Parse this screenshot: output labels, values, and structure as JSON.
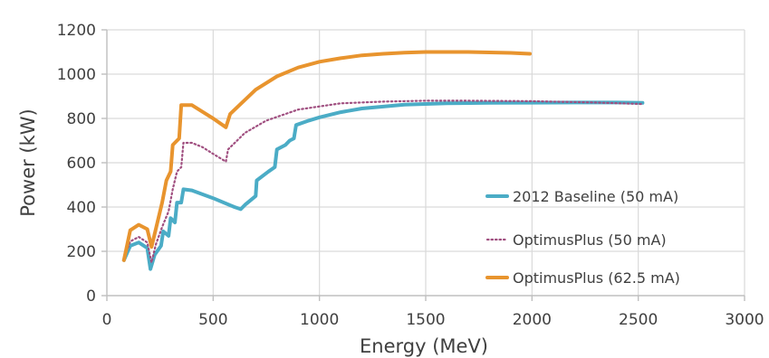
{
  "chart_data": {
    "type": "line",
    "title": "",
    "xlabel": "Energy (MeV)",
    "ylabel": "Power (kW)",
    "xlim": [
      0,
      3000
    ],
    "ylim": [
      0,
      1200
    ],
    "x_ticks": [
      0,
      500,
      1000,
      1500,
      2000,
      2500,
      3000
    ],
    "y_ticks": [
      0,
      200,
      400,
      600,
      800,
      1000,
      1200
    ],
    "grid": true,
    "legend_position": "bottom-right",
    "series": [
      {
        "name": "2012 Baseline (50 mA)",
        "color": "#4bacc6",
        "style": "solid",
        "points": [
          [
            80,
            160
          ],
          [
            110,
            225
          ],
          [
            150,
            240
          ],
          [
            190,
            215
          ],
          [
            205,
            120
          ],
          [
            225,
            185
          ],
          [
            255,
            225
          ],
          [
            265,
            290
          ],
          [
            290,
            270
          ],
          [
            300,
            350
          ],
          [
            320,
            330
          ],
          [
            330,
            420
          ],
          [
            350,
            420
          ],
          [
            360,
            480
          ],
          [
            400,
            475
          ],
          [
            500,
            440
          ],
          [
            600,
            400
          ],
          [
            630,
            390
          ],
          [
            650,
            410
          ],
          [
            700,
            450
          ],
          [
            705,
            520
          ],
          [
            760,
            560
          ],
          [
            790,
            580
          ],
          [
            800,
            660
          ],
          [
            840,
            680
          ],
          [
            860,
            700
          ],
          [
            880,
            710
          ],
          [
            890,
            770
          ],
          [
            950,
            790
          ],
          [
            1000,
            805
          ],
          [
            1100,
            828
          ],
          [
            1200,
            845
          ],
          [
            1400,
            862
          ],
          [
            1600,
            868
          ],
          [
            1800,
            870
          ],
          [
            2000,
            871
          ],
          [
            2200,
            872
          ],
          [
            2400,
            872
          ],
          [
            2520,
            870
          ]
        ]
      },
      {
        "name": "OptimusPlus (50 mA)",
        "color": "#a04f80",
        "style": "dotted",
        "points": [
          [
            80,
            165
          ],
          [
            110,
            245
          ],
          [
            150,
            265
          ],
          [
            190,
            240
          ],
          [
            210,
            150
          ],
          [
            230,
            230
          ],
          [
            260,
            310
          ],
          [
            290,
            380
          ],
          [
            310,
            480
          ],
          [
            330,
            560
          ],
          [
            350,
            580
          ],
          [
            360,
            690
          ],
          [
            400,
            690
          ],
          [
            450,
            670
          ],
          [
            500,
            640
          ],
          [
            560,
            605
          ],
          [
            570,
            660
          ],
          [
            650,
            735
          ],
          [
            750,
            790
          ],
          [
            900,
            840
          ],
          [
            1100,
            868
          ],
          [
            1300,
            876
          ],
          [
            1500,
            880
          ],
          [
            1700,
            880
          ],
          [
            2000,
            878
          ],
          [
            2300,
            872
          ],
          [
            2520,
            865
          ]
        ]
      },
      {
        "name": "OptimusPlus (62.5 mA)",
        "color": "#e8942e",
        "style": "solid",
        "points": [
          [
            80,
            160
          ],
          [
            110,
            295
          ],
          [
            150,
            320
          ],
          [
            190,
            300
          ],
          [
            210,
            220
          ],
          [
            230,
            300
          ],
          [
            260,
            420
          ],
          [
            280,
            520
          ],
          [
            300,
            560
          ],
          [
            310,
            680
          ],
          [
            340,
            710
          ],
          [
            350,
            860
          ],
          [
            400,
            860
          ],
          [
            500,
            800
          ],
          [
            560,
            760
          ],
          [
            580,
            820
          ],
          [
            700,
            930
          ],
          [
            800,
            990
          ],
          [
            900,
            1030
          ],
          [
            1000,
            1056
          ],
          [
            1100,
            1072
          ],
          [
            1200,
            1085
          ],
          [
            1300,
            1092
          ],
          [
            1400,
            1097
          ],
          [
            1500,
            1100
          ],
          [
            1600,
            1100
          ],
          [
            1700,
            1100
          ],
          [
            1800,
            1098
          ],
          [
            1900,
            1096
          ],
          [
            1990,
            1092
          ]
        ]
      }
    ]
  }
}
